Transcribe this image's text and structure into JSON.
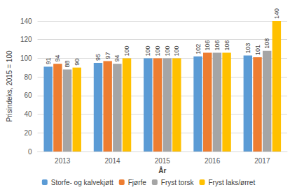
{
  "chart_data": {
    "type": "bar",
    "x_label": "År",
    "y_label": "Prisindeks, 2015 = 100",
    "categories": [
      "2013",
      "2014",
      "2015",
      "2016",
      "2017"
    ],
    "series": [
      {
        "name": "Storfe- og kalvekjøtt",
        "color": "#5b9bd5",
        "values": [
          91,
          95,
          100,
          102,
          103
        ]
      },
      {
        "name": "Fjørfe",
        "color": "#ed7d31",
        "values": [
          94,
          97,
          100,
          106,
          101
        ]
      },
      {
        "name": "Fryst torsk",
        "color": "#a5a5a5",
        "values": [
          88,
          94,
          100,
          106,
          108
        ]
      },
      {
        "name": "Fryst laks/ørret",
        "color": "#ffc000",
        "values": [
          90,
          100,
          100,
          106,
          140
        ]
      }
    ],
    "ylim": [
      0,
      140
    ],
    "yticks": [
      0,
      20,
      40,
      60,
      80,
      100,
      120,
      140
    ],
    "grid": true,
    "legend": "bottom",
    "data_labels": true
  }
}
